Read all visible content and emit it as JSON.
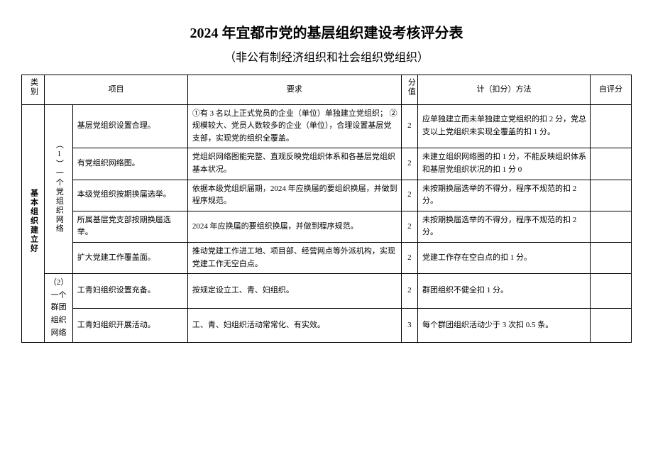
{
  "title": "2024 年宜都市党的基层组织建设考核评分表",
  "subtitle": "（非公有制经济组织和社会组织党组织）",
  "headers": {
    "category": "类别",
    "item": "项目",
    "requirement": "要求",
    "score": "分值",
    "method": "计（扣分）方法",
    "self": "自评分"
  },
  "category": "基本组织建立好",
  "subgroups": {
    "g1": "（1）一个党组织网络",
    "g2": "（2）一个群团组织网络"
  },
  "rows": [
    {
      "item": "基层党组织设置合理。",
      "requirement": "①有 3 名以上正式党员的企业（单位）单独建立党组织；\n\n②规模较大、党员人数较多的企业（单位），合理设置基层党支部，实现党的组织全覆盖。",
      "score": "2",
      "method": "应单独建立而未单独建立党组织的扣 2 分，党总支以上党组织未实现全覆盖的扣 1 分。"
    },
    {
      "item": "有党组织网络图。",
      "requirement": "党组织网络图能完整、直观反映党组织体系和各基层党组织基本状况。",
      "score": "2",
      "method": "未建立组织网络图的扣 1 分，不能反映组织体系和基层党组织状况的扣 1 分 0"
    },
    {
      "item": "本级党组织按期换届选举。",
      "requirement": "依据本级党组织届期，2024 年应换届的要组织换届，并做到程序规范。",
      "score": "2",
      "method": "未按期换届选举的不得分，程序不规范的扣 2 分。"
    },
    {
      "item": "所属基层党支部按期换届选举。",
      "requirement": "2024 年应换届的要组织换届，并做到程序规范。",
      "score": "2",
      "method": "未按期换届选举的不得分，程序不规范的扣 2 分。"
    },
    {
      "item": "扩大党建工作覆盖面。",
      "requirement": "推动党建工作进工地、项目部、经营网点等外派机构，实现党建工作无空白点。",
      "score": "2",
      "method": "党建工作存在空白点的扣 1 分。"
    },
    {
      "item": "工青妇组织设置充备。",
      "requirement": "按规定设立工、青、妇组织。",
      "score": "2",
      "method": "群团组织不健全扣 1 分。"
    },
    {
      "item": "工青妇组织开展活动。",
      "requirement": "工、青、妇组织活动常常化、有实效。",
      "score": "3",
      "method": "每个群团组织活动少于 3 次扣 0.5 条。"
    }
  ]
}
